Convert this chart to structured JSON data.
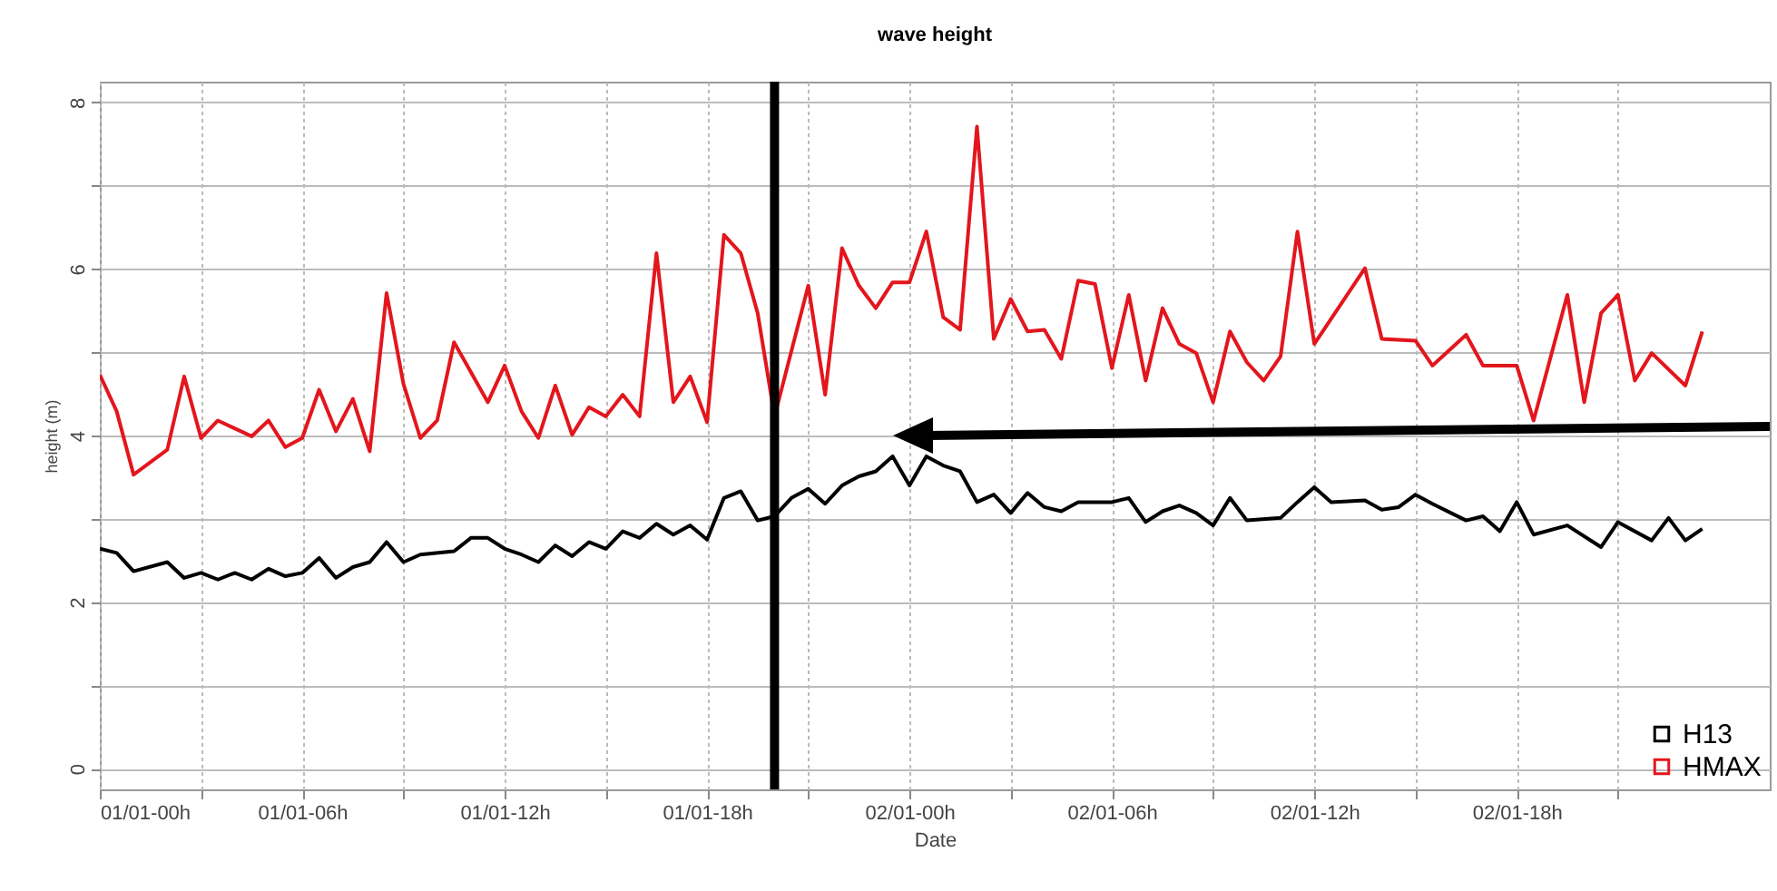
{
  "chart_data": {
    "type": "line",
    "title": "wave height",
    "xlabel": "Date",
    "ylabel": "height (m)",
    "xlim": [
      "--01-01T00:00",
      "--01-03T01:30"
    ],
    "ylim": [
      -0.25,
      8.25
    ],
    "xticks": [
      {
        "value": "--01-01T00:00",
        "label": "01/01-00h"
      },
      {
        "value": "--01-01T03:00",
        "label": null
      },
      {
        "value": "--01-01T06:00",
        "label": "01/01-06h"
      },
      {
        "value": "--01-01T09:00",
        "label": null
      },
      {
        "value": "--01-01T12:00",
        "label": "01/01-12h"
      },
      {
        "value": "--01-01T15:00",
        "label": null
      },
      {
        "value": "--01-01T18:00",
        "label": "01/01-18h"
      },
      {
        "value": "--01-01T21:00",
        "label": null
      },
      {
        "value": "--01-02T00:00",
        "label": "02/01-00h"
      },
      {
        "value": "--01-02T03:00",
        "label": null
      },
      {
        "value": "--01-02T06:00",
        "label": "02/01-06h"
      },
      {
        "value": "--01-02T09:00",
        "label": null
      },
      {
        "value": "--01-02T12:00",
        "label": "02/01-12h"
      },
      {
        "value": "--01-02T15:00",
        "label": null
      },
      {
        "value": "--01-02T18:00",
        "label": "02/01-18h"
      },
      {
        "value": "--01-02T21:00",
        "label": null
      }
    ],
    "yticks": [
      0,
      {
        "value": 1,
        "label": null
      },
      2,
      {
        "value": 3,
        "label": null
      },
      4,
      {
        "value": 5,
        "label": null
      },
      6,
      {
        "value": 7,
        "label": null
      },
      8
    ],
    "grid": true,
    "legend": "bottom right",
    "marker": "none",
    "line_style": "solid",
    "ref_lines": [
      {
        "axis": "x",
        "value": "--01-01T20:00",
        "color": "#000000"
      }
    ],
    "series": [
      {
        "name": "H13",
        "color": "#000000",
        "x": [
          "--01-01T00:00",
          "--01-01T00:30",
          "--01-01T01:00",
          "--01-01T02:00",
          "--01-01T02:30",
          "--01-01T03:00",
          "--01-01T03:30",
          "--01-01T04:00",
          "--01-01T04:30",
          "--01-01T05:00",
          "--01-01T05:30",
          "--01-01T06:00",
          "--01-01T06:30",
          "--01-01T07:00",
          "--01-01T07:30",
          "--01-01T08:00",
          "--01-01T08:30",
          "--01-01T09:00",
          "--01-01T09:30",
          "--01-01T10:30",
          "--01-01T11:00",
          "--01-01T11:30",
          "--01-01T12:00",
          "--01-01T12:30",
          "--01-01T13:00",
          "--01-01T13:30",
          "--01-01T14:00",
          "--01-01T14:30",
          "--01-01T15:00",
          "--01-01T15:30",
          "--01-01T16:00",
          "--01-01T16:30",
          "--01-01T17:00",
          "--01-01T17:30",
          "--01-01T18:00",
          "--01-01T18:30",
          "--01-01T19:00",
          "--01-01T19:30",
          "--01-01T20:00",
          "--01-01T20:30",
          "--01-01T21:00",
          "--01-01T21:30",
          "--01-01T22:00",
          "--01-01T22:30",
          "--01-01T23:00",
          "--01-01T23:30",
          "--01-02T00:00",
          "--01-02T00:30",
          "--01-02T01:00",
          "--01-02T01:30",
          "--01-02T02:00",
          "--01-02T02:30",
          "--01-02T03:00",
          "--01-02T03:30",
          "--01-02T04:00",
          "--01-02T04:30",
          "--01-02T05:00",
          "--01-02T05:30",
          "--01-02T06:00",
          "--01-02T06:30",
          "--01-02T07:00",
          "--01-02T07:30",
          "--01-02T08:00",
          "--01-02T08:30",
          "--01-02T09:00",
          "--01-02T09:30",
          "--01-02T10:00",
          "--01-02T11:00",
          "--01-02T11:30",
          "--01-02T12:00",
          "--01-02T12:30",
          "--01-02T13:30",
          "--01-02T14:00",
          "--01-02T14:30",
          "--01-02T15:00",
          "--01-02T15:30",
          "--01-02T16:30",
          "--01-02T17:00",
          "--01-02T17:30",
          "--01-02T18:00",
          "--01-02T18:30",
          "--01-02T19:30",
          "--01-02T20:30",
          "--01-02T21:00",
          "--01-02T22:00",
          "--01-02T22:30",
          "--01-02T23:00",
          "--01-02T23:30"
        ],
        "values": [
          2.64,
          2.59,
          2.37,
          2.48,
          2.29,
          2.35,
          2.27,
          2.35,
          2.27,
          2.4,
          2.31,
          2.35,
          2.53,
          2.29,
          2.42,
          2.48,
          2.72,
          2.48,
          2.57,
          2.61,
          2.77,
          2.77,
          2.64,
          2.57,
          2.48,
          2.68,
          2.55,
          2.72,
          2.64,
          2.85,
          2.77,
          2.94,
          2.81,
          2.92,
          2.75,
          3.25,
          3.33,
          2.98,
          3.03,
          3.25,
          3.36,
          3.18,
          3.4,
          3.51,
          3.57,
          3.75,
          3.4,
          3.75,
          3.64,
          3.57,
          3.2,
          3.29,
          3.07,
          3.31,
          3.14,
          3.09,
          3.2,
          3.2,
          3.2,
          3.25,
          2.96,
          3.09,
          3.16,
          3.07,
          2.92,
          3.25,
          2.98,
          3.01,
          3.2,
          3.38,
          3.2,
          3.22,
          3.11,
          3.14,
          3.29,
          3.18,
          2.98,
          3.03,
          2.85,
          3.2,
          2.81,
          2.92,
          2.66,
          2.96,
          2.74,
          3.01,
          2.74,
          2.88
        ]
      },
      {
        "name": "HMAX",
        "color": "#e3161d",
        "x": [
          "--01-01T00:00",
          "--01-01T00:30",
          "--01-01T01:00",
          "--01-01T02:00",
          "--01-01T02:30",
          "--01-01T03:00",
          "--01-01T03:30",
          "--01-01T04:30",
          "--01-01T05:00",
          "--01-01T05:30",
          "--01-01T06:00",
          "--01-01T06:30",
          "--01-01T07:00",
          "--01-01T07:30",
          "--01-01T08:00",
          "--01-01T08:30",
          "--01-01T09:00",
          "--01-01T09:30",
          "--01-01T10:00",
          "--01-01T10:30",
          "--01-01T11:30",
          "--01-01T12:00",
          "--01-01T12:30",
          "--01-01T13:00",
          "--01-01T13:30",
          "--01-01T14:00",
          "--01-01T14:30",
          "--01-01T15:00",
          "--01-01T15:30",
          "--01-01T16:00",
          "--01-01T16:30",
          "--01-01T17:00",
          "--01-01T17:30",
          "--01-01T18:00",
          "--01-01T18:30",
          "--01-01T19:00",
          "--01-01T19:30",
          "--01-01T20:00",
          "--01-01T21:00",
          "--01-01T21:30",
          "--01-01T22:00",
          "--01-01T22:30",
          "--01-01T23:00",
          "--01-01T23:30",
          "--01-02T00:00",
          "--01-02T00:30",
          "--01-02T01:00",
          "--01-02T01:30",
          "--01-02T02:00",
          "--01-02T02:30",
          "--01-02T03:00",
          "--01-02T03:30",
          "--01-02T04:00",
          "--01-02T04:30",
          "--01-02T05:00",
          "--01-02T05:30",
          "--01-02T06:00",
          "--01-02T06:30",
          "--01-02T07:00",
          "--01-02T07:30",
          "--01-02T08:00",
          "--01-02T08:30",
          "--01-02T09:00",
          "--01-02T09:30",
          "--01-02T10:00",
          "--01-02T10:30",
          "--01-02T11:00",
          "--01-02T11:30",
          "--01-02T12:00",
          "--01-02T13:30",
          "--01-02T14:00",
          "--01-02T15:00",
          "--01-02T15:30",
          "--01-02T16:30",
          "--01-02T17:00",
          "--01-02T18:00",
          "--01-02T18:30",
          "--01-02T19:30",
          "--01-02T20:00",
          "--01-02T20:30",
          "--01-02T21:00",
          "--01-02T21:30",
          "--01-02T22:00",
          "--01-02T23:00",
          "--01-02T23:30"
        ],
        "values": [
          4.73,
          4.29,
          3.53,
          3.83,
          4.71,
          3.97,
          4.18,
          3.99,
          4.18,
          3.86,
          3.97,
          4.55,
          4.05,
          4.44,
          3.81,
          5.71,
          4.62,
          3.97,
          4.18,
          5.12,
          4.4,
          4.84,
          4.29,
          3.97,
          4.6,
          4.01,
          4.34,
          4.23,
          4.49,
          4.23,
          6.19,
          4.4,
          4.71,
          4.16,
          6.41,
          6.19,
          5.47,
          4.23,
          5.8,
          4.49,
          6.25,
          5.8,
          5.53,
          5.84,
          5.84,
          6.45,
          5.42,
          5.27,
          7.71,
          5.16,
          5.64,
          5.25,
          5.27,
          4.92,
          5.86,
          5.82,
          4.81,
          5.69,
          4.66,
          5.53,
          5.1,
          4.99,
          4.4,
          5.25,
          4.88,
          4.66,
          4.95,
          6.45,
          5.1,
          6.01,
          5.16,
          5.14,
          4.84,
          5.21,
          4.84,
          4.84,
          4.18,
          5.69,
          4.4,
          5.47,
          5.69,
          4.66,
          4.99,
          4.6,
          5.25
        ]
      }
    ]
  }
}
